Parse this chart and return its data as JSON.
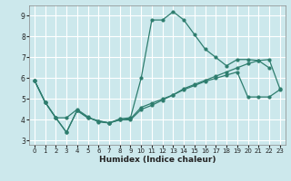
{
  "xlabel": "Humidex (Indice chaleur)",
  "bg_color": "#cce8ec",
  "grid_color": "#ffffff",
  "line_color": "#2e7d6e",
  "xlim": [
    -0.5,
    23.5
  ],
  "ylim": [
    2.8,
    9.5
  ],
  "yticks": [
    3,
    4,
    5,
    6,
    7,
    8,
    9
  ],
  "xticks": [
    0,
    1,
    2,
    3,
    4,
    5,
    6,
    7,
    8,
    9,
    10,
    11,
    12,
    13,
    14,
    15,
    16,
    17,
    18,
    19,
    20,
    21,
    22,
    23
  ],
  "line1_x": [
    0,
    1,
    2,
    3,
    4,
    5,
    6,
    7,
    8,
    9,
    10,
    11,
    12,
    13,
    14,
    15,
    16,
    17,
    18,
    19,
    20,
    21,
    22
  ],
  "line1_y": [
    5.9,
    4.85,
    4.1,
    3.4,
    4.45,
    4.1,
    3.95,
    3.85,
    4.05,
    4.1,
    6.0,
    8.8,
    8.8,
    9.2,
    8.8,
    8.1,
    7.4,
    7.0,
    6.6,
    6.9,
    6.9,
    6.85,
    6.5
  ],
  "line2_x": [
    0,
    1,
    2,
    3,
    4,
    5,
    6,
    7,
    8,
    9,
    10,
    11,
    12,
    13,
    14,
    15,
    16,
    17,
    18,
    19,
    20,
    21,
    22,
    23
  ],
  "line2_y": [
    5.9,
    4.85,
    4.1,
    4.1,
    4.5,
    4.15,
    3.9,
    3.85,
    4.0,
    4.05,
    4.6,
    4.8,
    5.0,
    5.2,
    5.5,
    5.7,
    5.9,
    6.1,
    6.3,
    6.5,
    6.7,
    6.85,
    6.9,
    5.5
  ],
  "line3_x": [
    0,
    1,
    2,
    3,
    4,
    5,
    6,
    7,
    8,
    9,
    10,
    11,
    12,
    13,
    14,
    15,
    16,
    17,
    18,
    19,
    20,
    21,
    22,
    23
  ],
  "line3_y": [
    5.9,
    4.85,
    4.1,
    3.4,
    4.45,
    4.1,
    3.95,
    3.85,
    4.0,
    4.0,
    4.5,
    4.7,
    4.95,
    5.2,
    5.45,
    5.65,
    5.85,
    6.0,
    6.15,
    6.3,
    5.1,
    5.1,
    5.1,
    5.45
  ]
}
